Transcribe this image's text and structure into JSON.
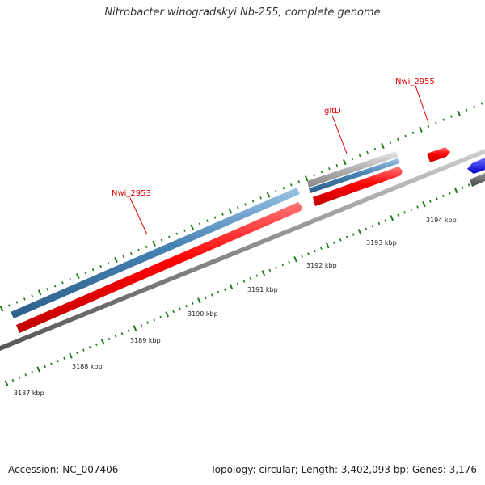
{
  "title": "Nitrobacter winogradskyi Nb-255, complete genome",
  "footer": {
    "accession": "Accession: NC_007406",
    "stats": "Topology: circular; Length: 3,402,093 bp; Genes: 3,176"
  },
  "colors": {
    "backbone": "#777777",
    "forward_cds": "#ff0000",
    "gene_bar": "#4682b4",
    "rna_bar": "#aaaaaa",
    "other_strand_blue": "#0000ff",
    "other_strand_gray": "#666666",
    "ticks": "#1a7a1a",
    "label": "#dd0000"
  },
  "scale_labels": [
    "3187 kbp",
    "3188 kbp",
    "3189 kbp",
    "3190 kbp",
    "3191 kbp",
    "3192 kbp",
    "3193 kbp",
    "3194 kbp"
  ],
  "gene_labels": [
    "Nwi_2953",
    "gltD",
    "Nwi_2955"
  ]
}
